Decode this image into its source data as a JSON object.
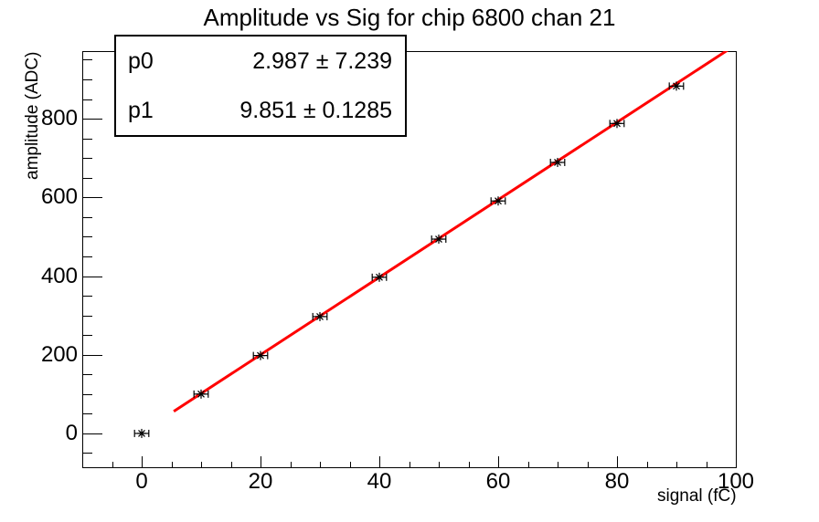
{
  "chart_data": {
    "type": "scatter",
    "title": "Amplitude vs Sig for chip 6800 chan 21",
    "xlabel": "signal (fC)",
    "ylabel": "amplitude (ADC)",
    "xlim": [
      -10,
      100
    ],
    "ylim": [
      -86,
      972
    ],
    "x_ticks": [
      "0",
      "20",
      "40",
      "60",
      "80",
      "100"
    ],
    "x_tick_values": [
      0,
      20,
      40,
      60,
      80,
      100
    ],
    "y_ticks": [
      "0",
      "200",
      "400",
      "600",
      "800"
    ],
    "y_tick_values": [
      0,
      200,
      400,
      600,
      800
    ],
    "x_minor_step": 5,
    "y_minor_step": 50,
    "grid": false,
    "legend": "none",
    "points": {
      "x": [
        0,
        10,
        20,
        30,
        40,
        50,
        60,
        70,
        80,
        90
      ],
      "y": [
        0,
        100,
        198,
        297,
        397,
        494,
        591,
        689,
        788,
        883
      ],
      "xerr": 1.2,
      "marker": "asterisk",
      "color": "#000000"
    },
    "fit_line": {
      "type": "linear",
      "p0": 2.987,
      "p1": 9.851,
      "x_range": [
        5.4,
        98.8
      ],
      "color": "#ff0000",
      "stroke_width": 3
    }
  },
  "stats": {
    "rows": [
      {
        "name": "p0",
        "value": "2.987 ± 7.239"
      },
      {
        "name": "p1",
        "value": "9.851 ± 0.1285"
      }
    ]
  }
}
